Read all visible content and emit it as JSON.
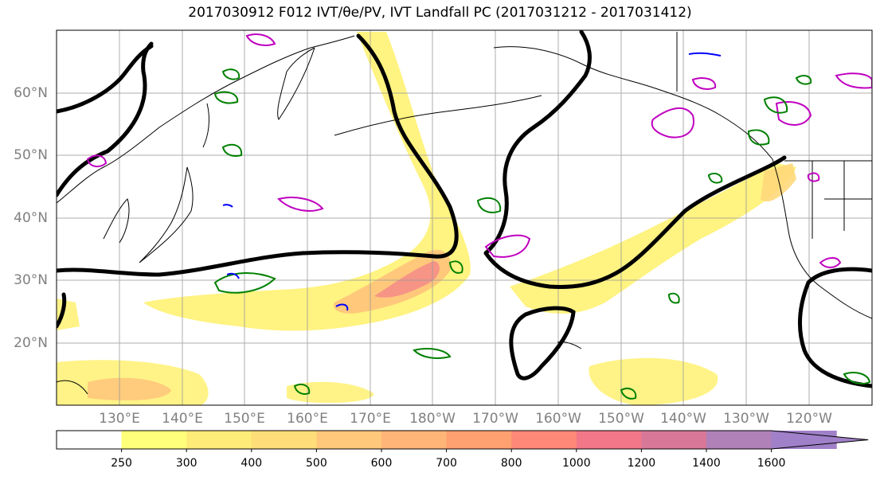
{
  "title": "2017030912 F012 IVT/θe/PV, IVT Landfall PC (2017031212 - 2017031412)",
  "map": {
    "projection": "equirectangular",
    "lon_range": [
      "120°E",
      "110°W"
    ],
    "lat_range": [
      "10°N",
      "70°N"
    ],
    "grid": true,
    "lat_ticks": [
      "20°N",
      "30°N",
      "40°N",
      "50°N",
      "60°N"
    ],
    "lon_ticks": [
      "130°E",
      "140°E",
      "150°E",
      "160°E",
      "170°E",
      "180°W",
      "170°W",
      "160°W",
      "150°W",
      "140°W",
      "130°W",
      "120°W"
    ],
    "layers": [
      {
        "name": "IVT",
        "style": "filled contours"
      },
      {
        "name": "theta-e",
        "color": "#000000",
        "style": "thick black contour"
      },
      {
        "name": "PV",
        "colors": [
          "#008000",
          "#c000c0",
          "#0000ff"
        ],
        "style": "thin contours"
      }
    ]
  },
  "colorbar": {
    "levels": [
      "250",
      "300",
      "400",
      "500",
      "600",
      "700",
      "800",
      "1000",
      "1200",
      "1400",
      "1600"
    ],
    "colors": [
      "#ffffff",
      "#ffff7a",
      "#ffeb78",
      "#ffdd78",
      "#ffc87a",
      "#ffb478",
      "#ffa070",
      "#ff8878",
      "#f07888",
      "#d87898",
      "#b080b8",
      "#a080c8"
    ],
    "extend": "max"
  }
}
